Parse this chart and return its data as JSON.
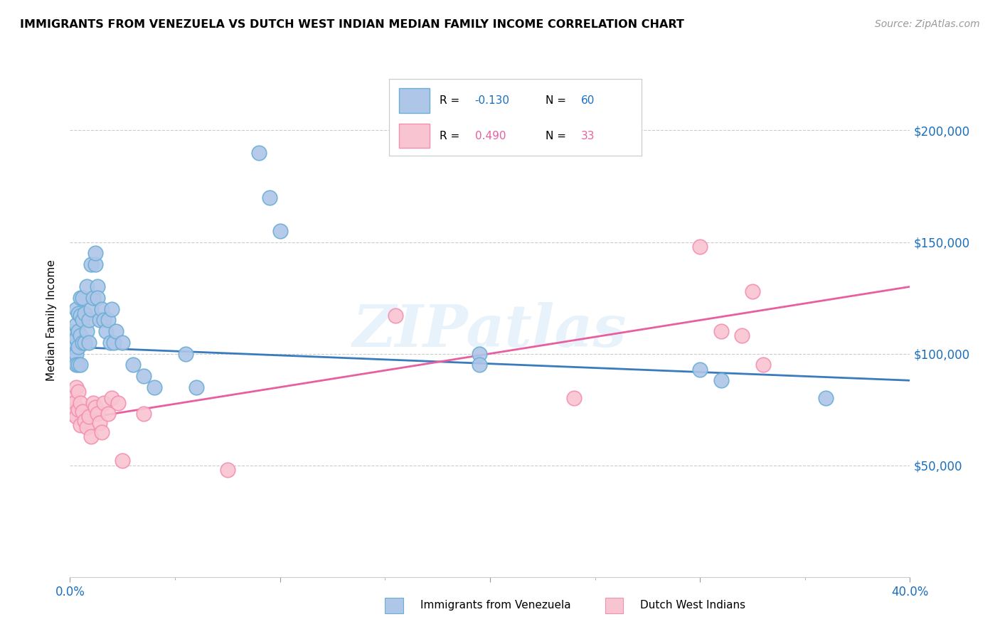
{
  "title": "IMMIGRANTS FROM VENEZUELA VS DUTCH WEST INDIAN MEDIAN FAMILY INCOME CORRELATION CHART",
  "source": "Source: ZipAtlas.com",
  "ylabel": "Median Family Income",
  "yticks": [
    50000,
    100000,
    150000,
    200000
  ],
  "ytick_labels": [
    "$50,000",
    "$100,000",
    "$150,000",
    "$200,000"
  ],
  "xlim": [
    0.0,
    0.4
  ],
  "ylim": [
    0,
    230000
  ],
  "watermark": "ZIPatlas",
  "color_blue": "#aec6e8",
  "color_blue_edge": "#6baed6",
  "color_pink": "#f9c4d2",
  "color_pink_edge": "#f48fb1",
  "color_blue_text": "#1a6fbd",
  "color_pink_text": "#e85fa0",
  "line_blue": "#3a7abf",
  "line_pink": "#e85fa0",
  "blue_line_x0": 0.0,
  "blue_line_y0": 103000,
  "blue_line_x1": 0.4,
  "blue_line_y1": 88000,
  "pink_line_x0": 0.0,
  "pink_line_y0": 70000,
  "pink_line_x1": 0.4,
  "pink_line_y1": 130000,
  "venezuela_x": [
    0.001,
    0.001,
    0.001,
    0.001,
    0.002,
    0.002,
    0.002,
    0.002,
    0.003,
    0.003,
    0.003,
    0.003,
    0.003,
    0.004,
    0.004,
    0.004,
    0.004,
    0.005,
    0.005,
    0.005,
    0.005,
    0.006,
    0.006,
    0.006,
    0.007,
    0.007,
    0.008,
    0.008,
    0.009,
    0.009,
    0.01,
    0.01,
    0.011,
    0.012,
    0.012,
    0.013,
    0.013,
    0.014,
    0.015,
    0.016,
    0.017,
    0.018,
    0.019,
    0.02,
    0.021,
    0.022,
    0.025,
    0.03,
    0.035,
    0.04,
    0.055,
    0.06,
    0.09,
    0.095,
    0.1,
    0.195,
    0.195,
    0.3,
    0.31,
    0.36
  ],
  "venezuela_y": [
    110000,
    105000,
    100000,
    97000,
    108000,
    103000,
    100000,
    97000,
    120000,
    113000,
    107000,
    100000,
    95000,
    118000,
    110000,
    103000,
    95000,
    125000,
    117000,
    108000,
    95000,
    125000,
    115000,
    105000,
    118000,
    105000,
    130000,
    110000,
    115000,
    105000,
    140000,
    120000,
    125000,
    140000,
    145000,
    130000,
    125000,
    115000,
    120000,
    115000,
    110000,
    115000,
    105000,
    120000,
    105000,
    110000,
    105000,
    95000,
    90000,
    85000,
    100000,
    85000,
    190000,
    170000,
    155000,
    100000,
    95000,
    93000,
    88000,
    80000
  ],
  "dutch_x": [
    0.001,
    0.002,
    0.002,
    0.003,
    0.003,
    0.004,
    0.004,
    0.005,
    0.005,
    0.006,
    0.007,
    0.008,
    0.009,
    0.01,
    0.011,
    0.012,
    0.013,
    0.014,
    0.015,
    0.016,
    0.018,
    0.02,
    0.023,
    0.025,
    0.035,
    0.075,
    0.155,
    0.24,
    0.3,
    0.31,
    0.32,
    0.325,
    0.33
  ],
  "dutch_y": [
    80000,
    78000,
    73000,
    85000,
    72000,
    83000,
    75000,
    78000,
    68000,
    74000,
    70000,
    67000,
    72000,
    63000,
    78000,
    76000,
    73000,
    69000,
    65000,
    78000,
    73000,
    80000,
    78000,
    52000,
    73000,
    48000,
    117000,
    80000,
    148000,
    110000,
    108000,
    128000,
    95000
  ]
}
